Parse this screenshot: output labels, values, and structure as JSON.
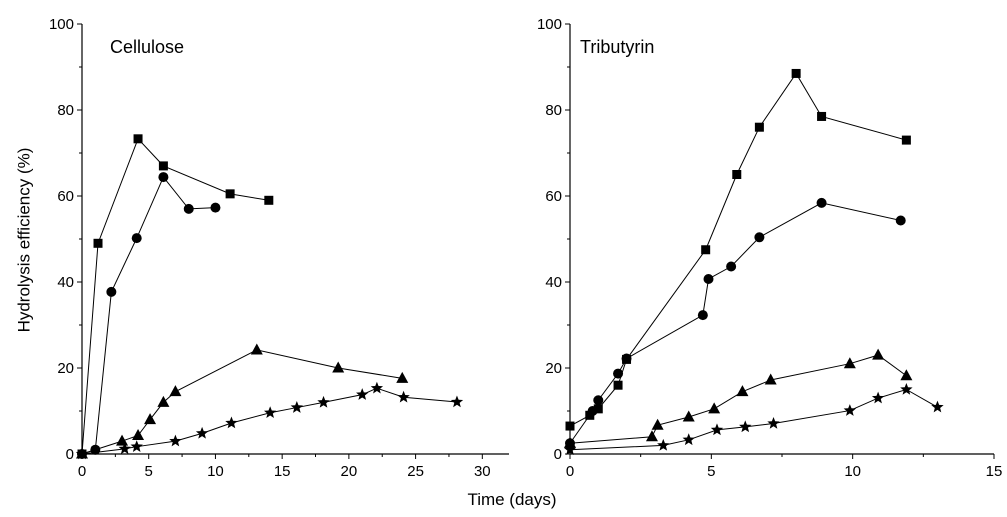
{
  "figure": {
    "xlabel": "Time (days)",
    "ylabel": "Hydrolysis efficiency (%)"
  },
  "chart_data": [
    {
      "type": "line",
      "title": "Cellulose",
      "xlabel": "Time (days)",
      "ylabel": "Hydrolysis efficiency (%)",
      "xlim": [
        0,
        32
      ],
      "ylim": [
        0,
        100
      ],
      "xticks": [
        0,
        5,
        10,
        15,
        20,
        25,
        30
      ],
      "yticks": [
        0,
        20,
        40,
        60,
        80,
        100
      ],
      "grid": false,
      "series": [
        {
          "marker": "square",
          "x": [
            0,
            1.2,
            4.2,
            6.1,
            11.1,
            14
          ],
          "y": [
            0,
            49,
            73.3,
            67,
            60.5,
            59
          ]
        },
        {
          "marker": "circle",
          "x": [
            0,
            1,
            2.2,
            4.1,
            6.1,
            8,
            10
          ],
          "y": [
            0,
            1,
            37.7,
            50.2,
            64.4,
            57,
            57.3
          ]
        },
        {
          "marker": "triangle",
          "x": [
            0,
            3,
            4.2,
            5.1,
            6.1,
            7,
            13.1,
            19.2,
            24
          ],
          "y": [
            0,
            3,
            4.3,
            8,
            12,
            14.5,
            24.2,
            20,
            17.6
          ]
        },
        {
          "marker": "star",
          "x": [
            0,
            3.2,
            4.1,
            7,
            9,
            11.2,
            14.1,
            16.1,
            18.1,
            21,
            22.1,
            24.1,
            28.1
          ],
          "y": [
            0,
            1.2,
            1.7,
            3,
            4.8,
            7.2,
            9.6,
            10.8,
            12,
            13.8,
            15.3,
            13.2,
            12.1
          ]
        }
      ]
    },
    {
      "type": "line",
      "title": "Tributyrin",
      "xlabel": "Time (days)",
      "ylabel": "",
      "xlim": [
        0,
        15
      ],
      "ylim": [
        0,
        100
      ],
      "xticks": [
        0,
        5,
        10,
        15
      ],
      "yticks": [
        0,
        20,
        40,
        60,
        80,
        100
      ],
      "grid": false,
      "series": [
        {
          "marker": "square",
          "x": [
            0,
            0.7,
            1,
            1.7,
            2,
            4.8,
            5.9,
            6.7,
            8,
            8.9,
            11.9
          ],
          "y": [
            6.5,
            9,
            10.5,
            16,
            22,
            47.5,
            65,
            76,
            88.5,
            78.5,
            73
          ]
        },
        {
          "marker": "circle",
          "x": [
            0,
            0.8,
            1,
            1.7,
            2,
            4.7,
            4.9,
            5.7,
            6.7,
            8.9,
            11.7
          ],
          "y": [
            2.5,
            10,
            12.5,
            18.7,
            22.2,
            32.3,
            40.7,
            43.6,
            50.4,
            58.4,
            54.3
          ]
        },
        {
          "marker": "triangle",
          "x": [
            0,
            2.9,
            3.1,
            4.2,
            5.1,
            6.1,
            7.1,
            9.9,
            10.9,
            11.9
          ],
          "y": [
            2.5,
            4,
            6.7,
            8.6,
            10.5,
            14.5,
            17.2,
            21,
            23,
            18.2
          ]
        },
        {
          "marker": "star",
          "x": [
            0,
            3.3,
            4.2,
            5.2,
            6.2,
            7.2,
            9.9,
            10.9,
            11.9,
            13
          ],
          "y": [
            1,
            2,
            3.3,
            5.6,
            6.3,
            7.1,
            10.1,
            13,
            15,
            10.9
          ]
        }
      ]
    }
  ]
}
